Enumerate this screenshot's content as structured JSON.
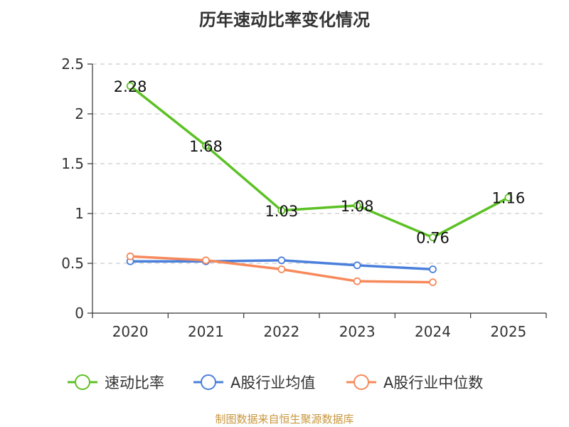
{
  "chart_data": {
    "type": "line",
    "title": "历年速动比率变化情况",
    "categories": [
      "2020",
      "2021",
      "2022",
      "2023",
      "2024",
      "2025"
    ],
    "yticks": [
      "0",
      "0.5",
      "1",
      "1.5",
      "2",
      "2.5"
    ],
    "ylim": [
      0,
      2.5
    ],
    "grid": true,
    "legend_position": "bottom",
    "series": [
      {
        "name": "速动比率",
        "color": "#5cc124",
        "values": [
          2.28,
          1.68,
          1.03,
          1.08,
          0.76,
          1.16
        ],
        "labels": [
          "2.28",
          "1.68",
          "1.03",
          "1.08",
          "0.76",
          "1.16"
        ]
      },
      {
        "name": "A股行业均值",
        "color": "#4a7fdb",
        "values": [
          0.52,
          0.52,
          0.53,
          0.48,
          0.44,
          null
        ]
      },
      {
        "name": "A股行业中位数",
        "color": "#f7895b",
        "values": [
          0.57,
          0.53,
          0.44,
          0.32,
          0.31,
          null
        ]
      }
    ]
  },
  "footer": "制图数据来自恒生聚源数据库"
}
